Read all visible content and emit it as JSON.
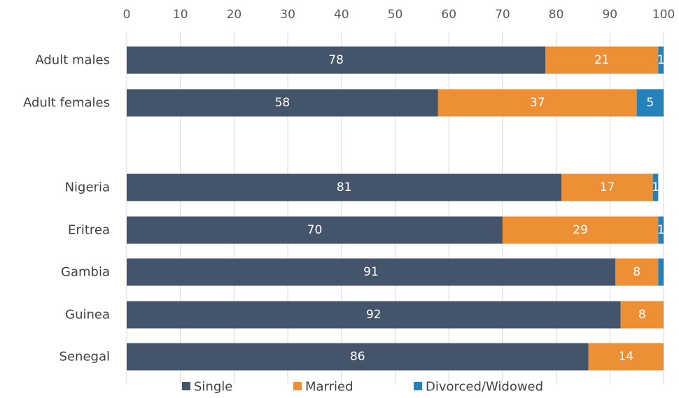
{
  "chart_data": {
    "type": "bar",
    "orientation": "horizontal",
    "stacked": true,
    "title": "",
    "xlabel": "",
    "ylabel": "",
    "xlim": [
      0,
      100
    ],
    "x_ticks": [
      "0",
      "10",
      "20",
      "30",
      "40",
      "50",
      "60",
      "70",
      "80",
      "90",
      "100"
    ],
    "x_axis_position": "top",
    "grid": true,
    "legend_position": "bottom",
    "categories": [
      "Adult males",
      "Adult females",
      "",
      "Nigeria",
      "Eritrea",
      "Gambia",
      "Guinea",
      "Senegal"
    ],
    "series": [
      {
        "name": "Single",
        "color": "#44546A",
        "values": [
          78,
          58,
          null,
          81,
          70,
          91,
          92,
          86
        ],
        "labels": [
          "78",
          "58",
          "",
          "81",
          "70",
          "91",
          "92",
          "86"
        ]
      },
      {
        "name": "Married",
        "color": "#ED8F35",
        "values": [
          21,
          37,
          null,
          17,
          29,
          8,
          8,
          14
        ],
        "labels": [
          "21",
          "37",
          "",
          "17",
          "29",
          "8",
          "8",
          "14"
        ]
      },
      {
        "name": "Divorced/Widowed",
        "color": "#2581B9",
        "values": [
          1,
          5,
          null,
          1,
          1,
          1,
          1,
          0
        ],
        "labels": [
          "1",
          "5",
          "",
          "1",
          "1",
          "",
          "",
          ""
        ]
      }
    ]
  }
}
